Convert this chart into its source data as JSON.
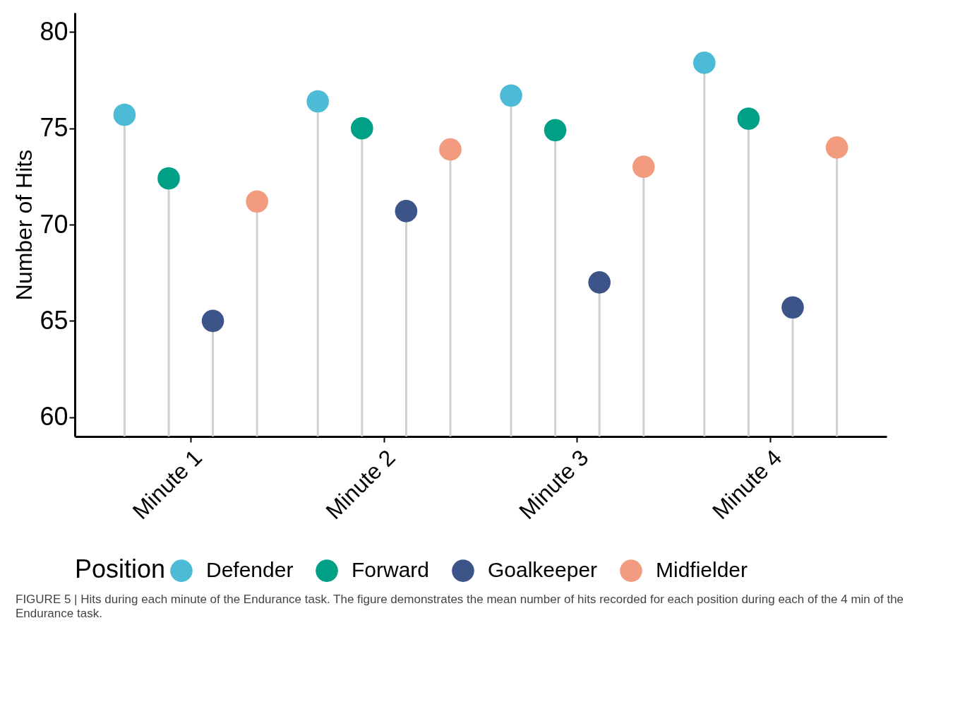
{
  "chart_data": {
    "type": "lollipop",
    "categories": [
      "Minute 1",
      "Minute 2",
      "Minute 3",
      "Minute 4"
    ],
    "series": [
      {
        "name": "Defender",
        "color": "#4dbbd5",
        "values": [
          75.7,
          76.4,
          76.7,
          78.4
        ]
      },
      {
        "name": "Forward",
        "color": "#00a087",
        "values": [
          72.4,
          75.0,
          74.9,
          75.5
        ]
      },
      {
        "name": "Goalkeeper",
        "color": "#3c5488",
        "values": [
          65.0,
          70.7,
          67.0,
          65.7
        ]
      },
      {
        "name": "Midfielder",
        "color": "#f39b7f",
        "values": [
          71.2,
          73.9,
          73.0,
          74.0
        ]
      }
    ],
    "ylabel": "Number of Hits",
    "ylim": [
      59,
      81
    ],
    "yticks": [
      60,
      65,
      70,
      75,
      80
    ],
    "legend": "bottom",
    "legend_title": "Position",
    "marker": "circle",
    "annotations": [
      "FIGURE 5 | Hits during each minute of the Endurance task. The figure demonstrates the mean number of hits recorded for each position during each of the 4 min of the Endurance task."
    ]
  }
}
